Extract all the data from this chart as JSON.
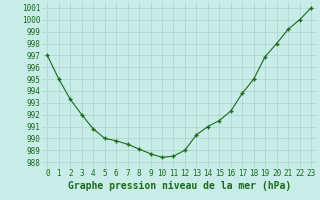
{
  "hours": [
    0,
    1,
    2,
    3,
    4,
    5,
    6,
    7,
    8,
    9,
    10,
    11,
    12,
    13,
    14,
    15,
    16,
    17,
    18,
    19,
    20,
    21,
    22,
    23
  ],
  "pressure": [
    997.0,
    995.0,
    993.3,
    992.0,
    990.8,
    990.0,
    989.8,
    989.5,
    989.1,
    988.7,
    988.4,
    988.5,
    989.0,
    990.3,
    991.0,
    991.5,
    992.3,
    993.8,
    995.0,
    996.9,
    998.0,
    999.2,
    1000.0,
    1001.0
  ],
  "line_color": "#1a6b1a",
  "marker": "+",
  "bg_color": "#c8ece8",
  "grid_color": "#aad4ce",
  "label_color": "#1a6b1a",
  "xlabel": "Graphe pression niveau de la mer (hPa)",
  "ylim": [
    987.5,
    1001.5
  ],
  "yticks": [
    988,
    989,
    990,
    991,
    992,
    993,
    994,
    995,
    996,
    997,
    998,
    999,
    1000,
    1001
  ],
  "xticks": [
    0,
    1,
    2,
    3,
    4,
    5,
    6,
    7,
    8,
    9,
    10,
    11,
    12,
    13,
    14,
    15,
    16,
    17,
    18,
    19,
    20,
    21,
    22,
    23
  ],
  "xlabel_fontsize": 7,
  "tick_fontsize": 5.5
}
